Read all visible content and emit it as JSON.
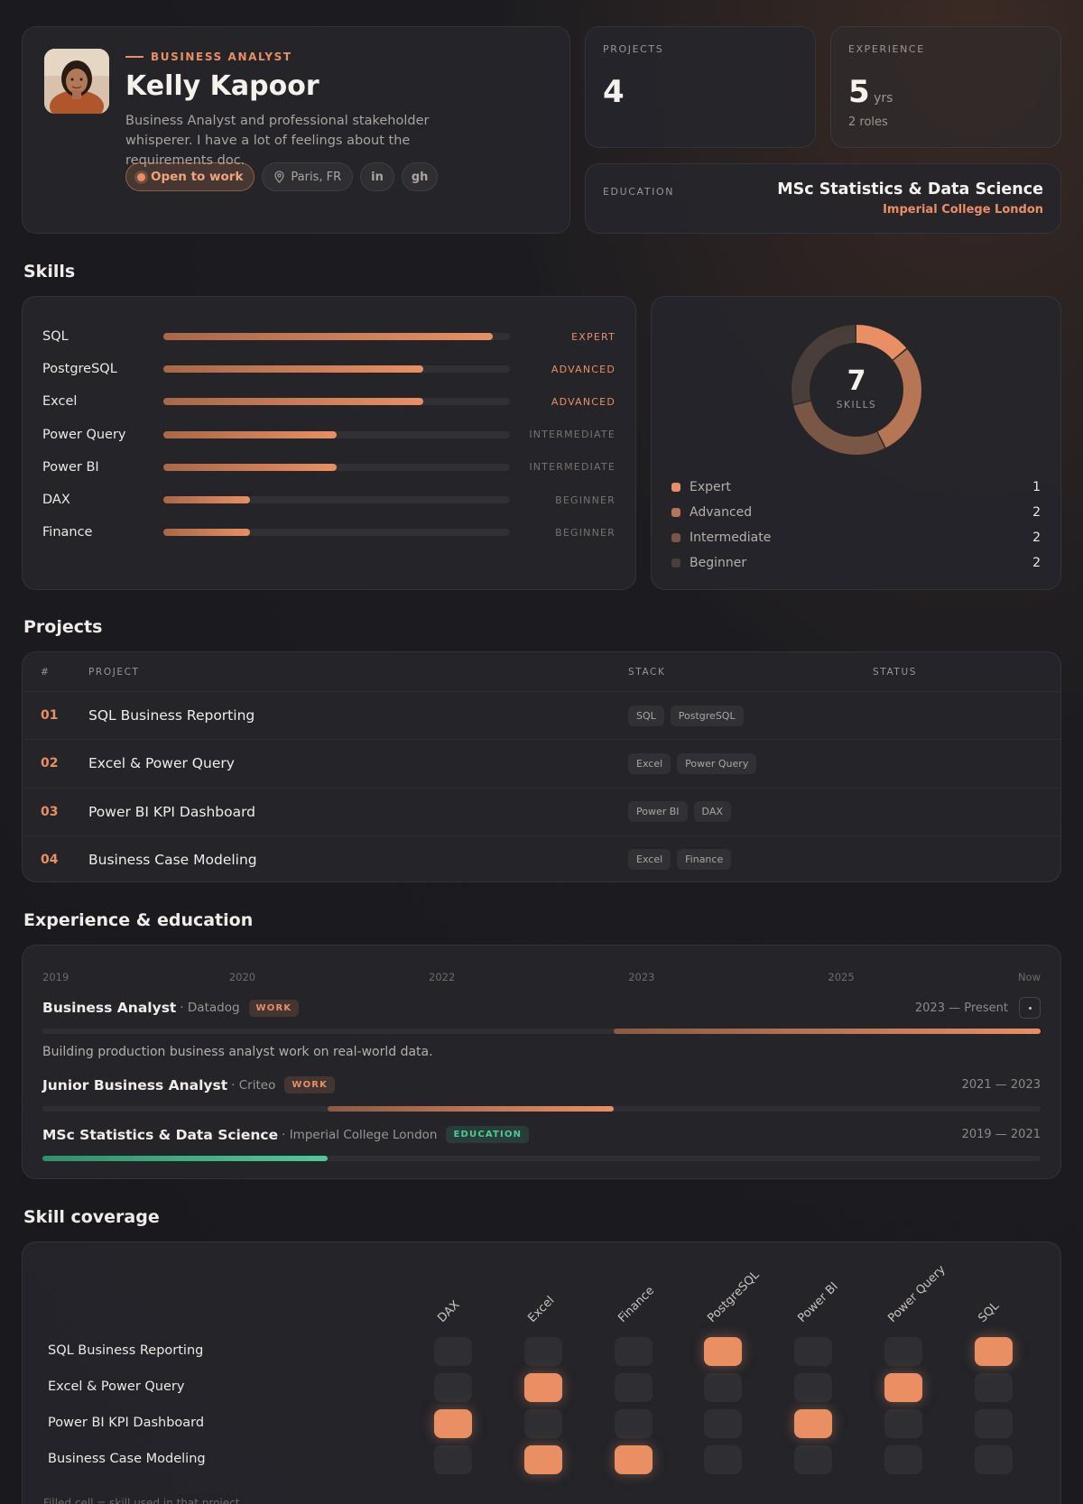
{
  "profile": {
    "role": "Business Analyst",
    "name": "Kelly Kapoor",
    "bio": "Business Analyst and professional stakeholder whisperer. I have a lot of feelings about the requirements doc.",
    "status": "Open to work",
    "location": "Paris, FR",
    "social": [
      "in",
      "gh"
    ]
  },
  "stats": {
    "projects_label": "Projects",
    "projects_value": "4",
    "experience_label": "Experience",
    "experience_value": "5",
    "experience_unit": "yrs",
    "experience_sub": "2 roles",
    "education_label": "Education",
    "education_degree": "MSc Statistics & Data Science",
    "education_school": "Imperial College London"
  },
  "sections": {
    "skills": "Skills",
    "projects": "Projects",
    "experience": "Experience & education",
    "coverage": "Skill coverage"
  },
  "skills": [
    {
      "name": "SQL",
      "level": "Expert",
      "fraction": 0.95
    },
    {
      "name": "PostgreSQL",
      "level": "Advanced",
      "fraction": 0.75
    },
    {
      "name": "Excel",
      "level": "Advanced",
      "fraction": 0.75
    },
    {
      "name": "Power Query",
      "level": "Intermediate",
      "fraction": 0.5
    },
    {
      "name": "Power BI",
      "level": "Intermediate",
      "fraction": 0.5
    },
    {
      "name": "DAX",
      "level": "Beginner",
      "fraction": 0.25
    },
    {
      "name": "Finance",
      "level": "Beginner",
      "fraction": 0.25
    }
  ],
  "skill_summary": {
    "total": "7",
    "total_label": "Skills",
    "levels": [
      {
        "label": "Expert",
        "count": 1,
        "color": "#e98f63"
      },
      {
        "label": "Advanced",
        "count": 2,
        "color": "#b67554"
      },
      {
        "label": "Intermediate",
        "count": 2,
        "color": "#7a5646"
      },
      {
        "label": "Beginner",
        "count": 2,
        "color": "#4a3e3a"
      }
    ]
  },
  "projects_table": {
    "headers": [
      "#",
      "Project",
      "Stack",
      "Status"
    ],
    "rows": [
      {
        "num": "01",
        "name": "SQL Business Reporting",
        "stack": [
          "SQL",
          "PostgreSQL"
        ]
      },
      {
        "num": "02",
        "name": "Excel & Power Query",
        "stack": [
          "Excel",
          "Power Query"
        ]
      },
      {
        "num": "03",
        "name": "Power BI KPI Dashboard",
        "stack": [
          "Power BI",
          "DAX"
        ]
      },
      {
        "num": "04",
        "name": "Business Case Modeling",
        "stack": [
          "Excel",
          "Finance"
        ]
      }
    ]
  },
  "timeline": {
    "axis": [
      "2019",
      "2020",
      "2022",
      "2023",
      "2025",
      "Now"
    ],
    "items": [
      {
        "role": "Business Analyst",
        "org": "· Datadog",
        "badge": "Work",
        "kind": "work",
        "dates": "2023 — Present",
        "start": 0.572,
        "end": 1.0,
        "desc": "Building production business analyst work on real-world data."
      },
      {
        "role": "Junior Business Analyst",
        "org": "· Criteo",
        "badge": "Work",
        "kind": "work",
        "dates": "2021 — 2023",
        "start": 0.286,
        "end": 0.572,
        "desc": ""
      },
      {
        "role": "MSc Statistics & Data Science",
        "org": "· Imperial College London",
        "badge": "Education",
        "kind": "edu",
        "dates": "2019 — 2021",
        "start": 0.0,
        "end": 0.286,
        "desc": ""
      }
    ]
  },
  "coverage": {
    "columns": [
      "DAX",
      "Excel",
      "Finance",
      "PostgreSQL",
      "Power BI",
      "Power Query",
      "SQL"
    ],
    "rows": [
      {
        "project": "SQL Business Reporting",
        "cells": [
          0,
          0,
          0,
          1,
          0,
          0,
          1
        ]
      },
      {
        "project": "Excel & Power Query",
        "cells": [
          0,
          1,
          0,
          0,
          0,
          1,
          0
        ]
      },
      {
        "project": "Power BI KPI Dashboard",
        "cells": [
          1,
          0,
          0,
          0,
          1,
          0,
          0
        ]
      },
      {
        "project": "Business Case Modeling",
        "cells": [
          0,
          1,
          1,
          0,
          0,
          0,
          0
        ]
      }
    ],
    "footnote": "Filled cell = skill used in that project"
  }
}
